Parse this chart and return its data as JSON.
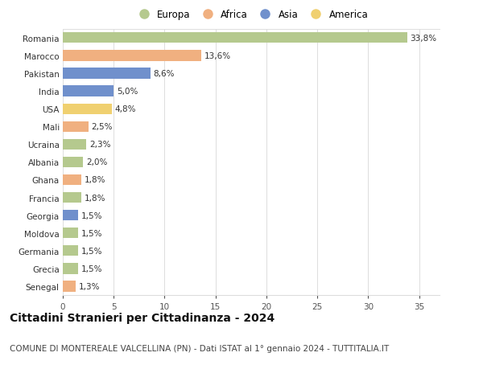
{
  "countries": [
    "Romania",
    "Marocco",
    "Pakistan",
    "India",
    "USA",
    "Mali",
    "Ucraina",
    "Albania",
    "Ghana",
    "Francia",
    "Georgia",
    "Moldova",
    "Germania",
    "Grecia",
    "Senegal"
  ],
  "values": [
    33.8,
    13.6,
    8.6,
    5.0,
    4.8,
    2.5,
    2.3,
    2.0,
    1.8,
    1.8,
    1.5,
    1.5,
    1.5,
    1.5,
    1.3
  ],
  "labels": [
    "33,8%",
    "13,6%",
    "8,6%",
    "5,0%",
    "4,8%",
    "2,5%",
    "2,3%",
    "2,0%",
    "1,8%",
    "1,8%",
    "1,5%",
    "1,5%",
    "1,5%",
    "1,5%",
    "1,3%"
  ],
  "continents": [
    "Europa",
    "Africa",
    "Asia",
    "Asia",
    "America",
    "Africa",
    "Europa",
    "Europa",
    "Africa",
    "Europa",
    "Asia",
    "Europa",
    "Europa",
    "Europa",
    "Africa"
  ],
  "colors": {
    "Europa": "#b5c98e",
    "Africa": "#f0b080",
    "Asia": "#7090cc",
    "America": "#f0d070"
  },
  "legend_order": [
    "Europa",
    "Africa",
    "Asia",
    "America"
  ],
  "title": "Cittadini Stranieri per Cittadinanza - 2024",
  "subtitle": "COMUNE DI MONTEREALE VALCELLINA (PN) - Dati ISTAT al 1° gennaio 2024 - TUTTITALIA.IT",
  "xlim": [
    0,
    37
  ],
  "xticks": [
    0,
    5,
    10,
    15,
    20,
    25,
    30,
    35
  ],
  "background_color": "#ffffff",
  "grid_color": "#dddddd",
  "title_fontsize": 10,
  "subtitle_fontsize": 7.5,
  "label_fontsize": 7.5,
  "tick_fontsize": 7.5,
  "legend_fontsize": 8.5
}
